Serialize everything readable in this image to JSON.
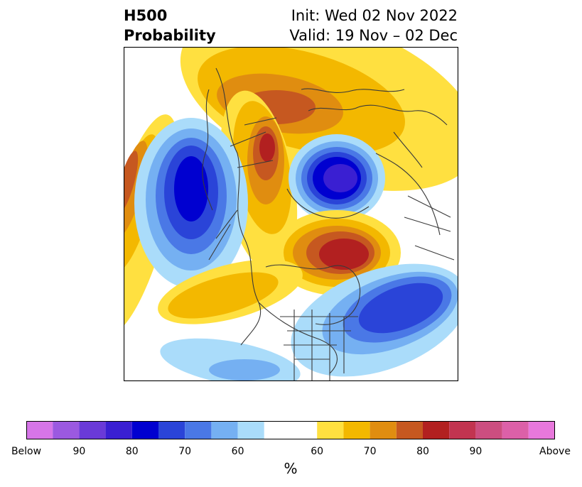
{
  "title": {
    "left_line1": "H500",
    "left_line2": "Probability",
    "right_line1": "Init: Wed 02 Nov 2022",
    "right_line2": "Valid: 19 Nov – 02 Dec"
  },
  "colorbar": {
    "unit": "%",
    "below_colors": [
      "#d675e8",
      "#9b59e0",
      "#6a3ad8",
      "#3a1fd2",
      "#0000d0",
      "#2a44d8",
      "#4a78e6",
      "#75b0f2",
      "#aadcfa"
    ],
    "neutral_color": "#ffffff",
    "above_colors": [
      "#ffe040",
      "#f3b800",
      "#e08d10",
      "#c65820",
      "#b22020",
      "#c23450",
      "#cc4e80",
      "#dc60a8",
      "#e878dc"
    ],
    "tick_labels": [
      {
        "text": "Below"
      },
      {
        "text": "90"
      },
      {
        "text": "80"
      },
      {
        "text": "70"
      },
      {
        "text": "60"
      },
      {
        "text": "60"
      },
      {
        "text": "70"
      },
      {
        "text": "80"
      },
      {
        "text": "90"
      },
      {
        "text": "Above"
      }
    ]
  },
  "map": {
    "projection": "north-polar-stereographic",
    "field": "500 hPa height probability anomalies",
    "features": [
      {
        "name": "negative-anomaly-north-pacific",
        "category": "below",
        "level": 80
      },
      {
        "name": "negative-anomaly-arctic-siberia",
        "category": "below",
        "level": 90
      },
      {
        "name": "negative-anomaly-north-atlantic",
        "category": "below",
        "level": 70
      },
      {
        "name": "positive-anomaly-greenland-canada",
        "category": "above",
        "level": 80
      },
      {
        "name": "positive-anomaly-europe",
        "category": "above",
        "level": 80
      },
      {
        "name": "positive-anomaly-eastern-pacific",
        "category": "above",
        "level": 70
      },
      {
        "name": "positive-anomaly-asia",
        "category": "above",
        "level": 60
      }
    ]
  }
}
